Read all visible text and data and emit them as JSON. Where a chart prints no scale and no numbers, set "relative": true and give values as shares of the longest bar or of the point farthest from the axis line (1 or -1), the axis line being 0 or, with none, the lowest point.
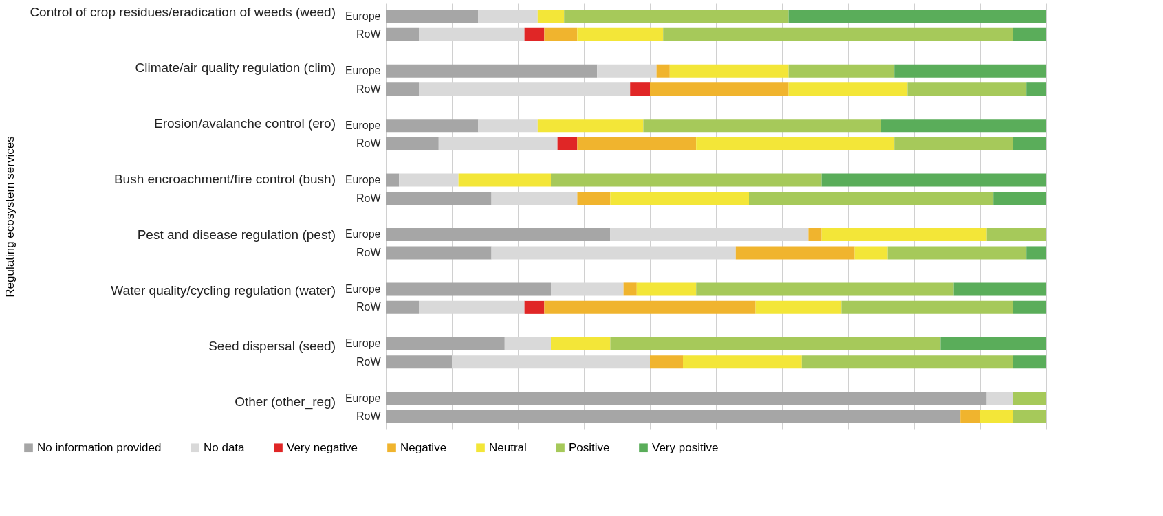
{
  "chart_data": {
    "type": "bar",
    "orientation": "horizontal",
    "stacked": true,
    "relative": true,
    "grid": "x",
    "legend": "bottom",
    "annotations": [
      "Regulating ecosystem services",
      "Control of crop residues/eradication of weeds (weed)",
      "Climate/air quality regulation (clim)",
      "Erosion/avalanche control (ero)",
      "Bush encroachment/fire control (bush)",
      "Pest and disease regulation (pest)",
      "Water quality/cycling regulation (water)",
      "Seed dispersal (seed)",
      "Other (other_reg)"
    ],
    "categories": [
      "Europe",
      "RoW",
      "Europe",
      "RoW",
      "Europe",
      "RoW",
      "Europe",
      "RoW",
      "Europe",
      "RoW",
      "Europe",
      "RoW",
      "Europe",
      "RoW",
      "Europe",
      "RoW"
    ],
    "series": [
      {
        "name": "No information provided",
        "color": "#a6a6a6",
        "values": [
          0.14,
          0.05,
          0.32,
          0.05,
          0.14,
          0.08,
          0.02,
          0.16,
          0.34,
          0.16,
          0.25,
          0.05,
          0.18,
          0.1,
          0.91,
          0.87
        ]
      },
      {
        "name": "No data",
        "color": "#d9d9d9",
        "values": [
          0.09,
          0.16,
          0.09,
          0.32,
          0.09,
          0.18,
          0.09,
          0.13,
          0.3,
          0.37,
          0.11,
          0.16,
          0.07,
          0.3,
          0.04,
          0
        ]
      },
      {
        "name": "Very negative",
        "color": "#e02626",
        "values": [
          0,
          0.03,
          0,
          0.03,
          0,
          0.03,
          0,
          0,
          0,
          0,
          0,
          0.03,
          0,
          0,
          0,
          0
        ]
      },
      {
        "name": "Negative",
        "color": "#f0b42e",
        "values": [
          0,
          0.05,
          0.02,
          0.21,
          0,
          0.18,
          0,
          0.05,
          0.02,
          0.18,
          0.02,
          0.32,
          0,
          0.05,
          0,
          0.03
        ]
      },
      {
        "name": "Neutral",
        "color": "#f3e638",
        "values": [
          0.04,
          0.13,
          0.18,
          0.18,
          0.16,
          0.3,
          0.14,
          0.21,
          0.25,
          0.05,
          0.09,
          0.13,
          0.09,
          0.18,
          0,
          0.05
        ]
      },
      {
        "name": "Positive",
        "color": "#a6c95a",
        "values": [
          0.34,
          0.53,
          0.16,
          0.18,
          0.36,
          0.18,
          0.41,
          0.37,
          0.09,
          0.21,
          0.39,
          0.26,
          0.5,
          0.32,
          0.05,
          0.05
        ]
      },
      {
        "name": "Very positive",
        "color": "#5aad5a",
        "values": [
          0.39,
          0.05,
          0.23,
          0.03,
          0.25,
          0.05,
          0.34,
          0.08,
          0,
          0.03,
          0.14,
          0.05,
          0.16,
          0.05,
          0,
          0
        ]
      }
    ]
  }
}
